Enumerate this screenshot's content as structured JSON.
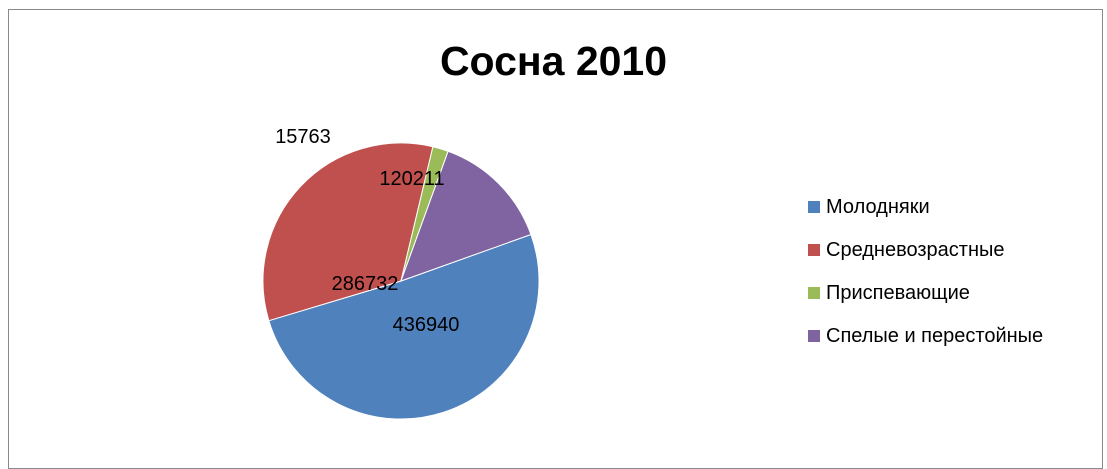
{
  "chart_data": {
    "type": "pie",
    "title": "Сосна 2010",
    "categories": [
      "Молодняки",
      "Средневозрастные",
      "Приспевающие",
      "Спелые и перестойные"
    ],
    "values": [
      436940,
      286732,
      15763,
      120211
    ],
    "colors": [
      "#4f81bd",
      "#c0504d",
      "#9bbb59",
      "#8064a2"
    ],
    "data_labels": [
      "436940",
      "286732",
      "15763",
      "120211"
    ],
    "legend_position": "right"
  }
}
